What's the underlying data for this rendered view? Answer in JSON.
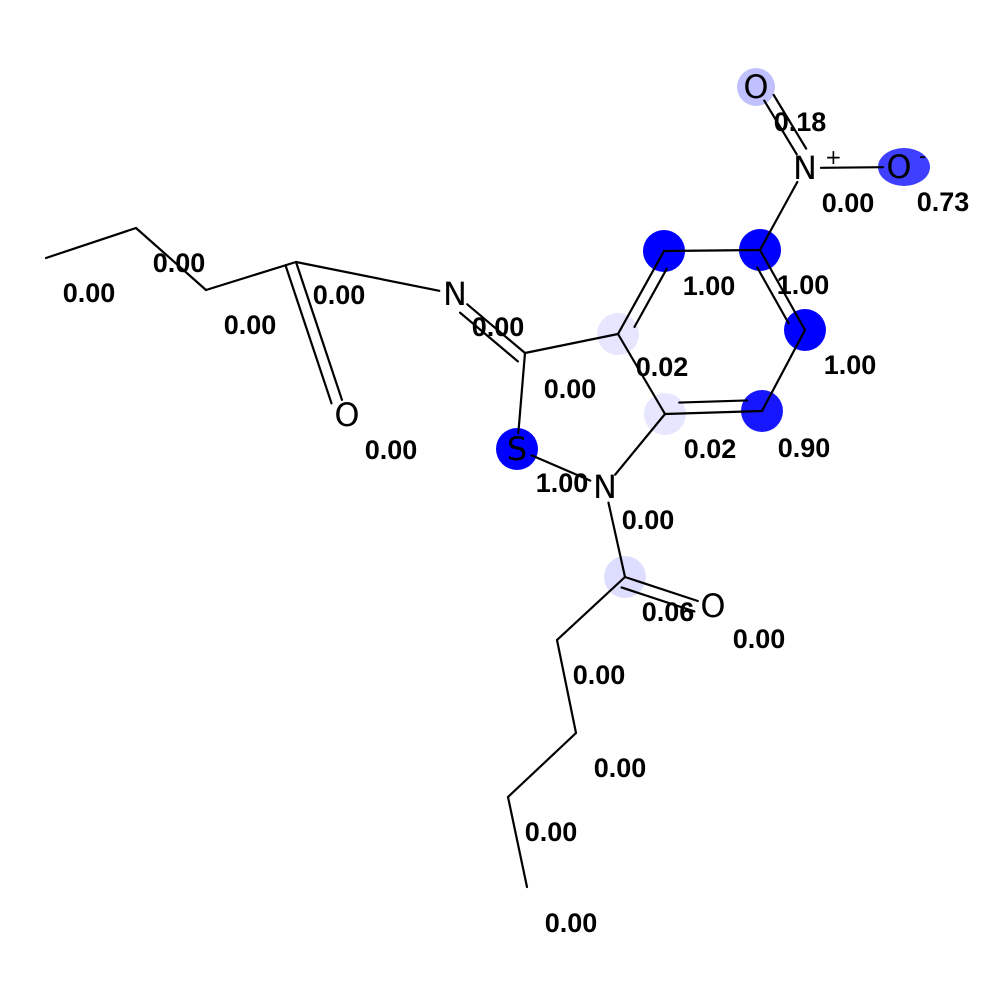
{
  "colors": {
    "highlight": "#0000ff",
    "bond": "#000000",
    "background": "#ffffff"
  },
  "atoms": [
    {
      "id": "a0",
      "element": "",
      "charge": "",
      "score": "0.00",
      "weight": 0.0
    },
    {
      "id": "a1",
      "element": "",
      "charge": "",
      "score": "0.00",
      "weight": 0.0
    },
    {
      "id": "a2",
      "element": "",
      "charge": "",
      "score": "0.00",
      "weight": 0.0
    },
    {
      "id": "a3",
      "element": "",
      "charge": "",
      "score": "0.00",
      "weight": 0.0
    },
    {
      "id": "a4",
      "element": "N",
      "charge": "",
      "score": "0.00",
      "weight": 0.0
    },
    {
      "id": "a5",
      "element": "O",
      "charge": "",
      "score": "0.00",
      "weight": 0.0
    },
    {
      "id": "a6",
      "element": "",
      "charge": "",
      "score": "0.00",
      "weight": 0.0
    },
    {
      "id": "a7",
      "element": "S",
      "charge": "",
      "score": "1.00",
      "weight": 1.0
    },
    {
      "id": "a8",
      "element": "N",
      "charge": "",
      "score": "0.00",
      "weight": 0.0
    },
    {
      "id": "a9",
      "element": "",
      "charge": "",
      "score": "0.06",
      "weight": 0.06
    },
    {
      "id": "a10",
      "element": "O",
      "charge": "",
      "score": "0.00",
      "weight": 0.0
    },
    {
      "id": "a11",
      "element": "",
      "charge": "",
      "score": "0.00",
      "weight": 0.0
    },
    {
      "id": "a12",
      "element": "",
      "charge": "",
      "score": "0.00",
      "weight": 0.0
    },
    {
      "id": "a13",
      "element": "",
      "charge": "",
      "score": "0.00",
      "weight": 0.0
    },
    {
      "id": "a14",
      "element": "",
      "charge": "",
      "score": "0.00",
      "weight": 0.0
    },
    {
      "id": "a15",
      "element": "",
      "charge": "",
      "score": "0.02",
      "weight": 0.02
    },
    {
      "id": "a16",
      "element": "",
      "charge": "",
      "score": "0.90",
      "weight": 0.9
    },
    {
      "id": "a17",
      "element": "",
      "charge": "",
      "score": "1.00",
      "weight": 1.0
    },
    {
      "id": "a18",
      "element": "",
      "charge": "",
      "score": "1.00",
      "weight": 1.0
    },
    {
      "id": "a19",
      "element": "N",
      "charge": "+",
      "score": "0.00",
      "weight": 0.0
    },
    {
      "id": "a20",
      "element": "O",
      "charge": "",
      "score": "0.18",
      "weight": 0.18
    },
    {
      "id": "a21",
      "element": "O",
      "charge": "-",
      "score": "0.73",
      "weight": 0.73
    },
    {
      "id": "a22",
      "element": "",
      "charge": "",
      "score": "1.00",
      "weight": 1.0
    },
    {
      "id": "a23",
      "element": "",
      "charge": "",
      "score": "0.02",
      "weight": 0.02
    }
  ],
  "bonds": [
    {
      "a": 0,
      "b": 1,
      "order": 1
    },
    {
      "a": 1,
      "b": 2,
      "order": 1
    },
    {
      "a": 2,
      "b": 3,
      "order": 1
    },
    {
      "a": 3,
      "b": 4,
      "order": 1
    },
    {
      "a": 3,
      "b": 5,
      "order": 2
    },
    {
      "a": 4,
      "b": 6,
      "order": 2
    },
    {
      "a": 6,
      "b": 7,
      "order": 1
    },
    {
      "a": 7,
      "b": 8,
      "order": 1
    },
    {
      "a": 8,
      "b": 9,
      "order": 1
    },
    {
      "a": 9,
      "b": 10,
      "order": 2
    },
    {
      "a": 9,
      "b": 11,
      "order": 1
    },
    {
      "a": 11,
      "b": 12,
      "order": 1
    },
    {
      "a": 12,
      "b": 13,
      "order": 1
    },
    {
      "a": 13,
      "b": 14,
      "order": 1
    },
    {
      "a": 8,
      "b": 15,
      "order": 1
    },
    {
      "a": 15,
      "b": 16,
      "order": 2
    },
    {
      "a": 16,
      "b": 17,
      "order": 1
    },
    {
      "a": 17,
      "b": 18,
      "order": 2
    },
    {
      "a": 18,
      "b": 19,
      "order": 1
    },
    {
      "a": 19,
      "b": 20,
      "order": 2
    },
    {
      "a": 19,
      "b": 21,
      "order": 1
    },
    {
      "a": 18,
      "b": 22,
      "order": 1
    },
    {
      "a": 22,
      "b": 23,
      "order": 2
    },
    {
      "a": 23,
      "b": 6,
      "order": 1
    },
    {
      "a": 23,
      "b": 15,
      "order": 1
    }
  ]
}
